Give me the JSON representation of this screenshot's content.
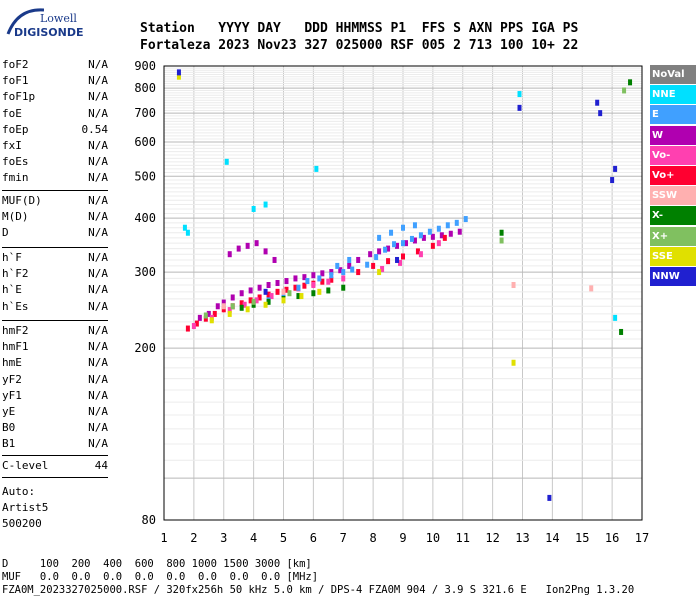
{
  "logo": {
    "line1": "Lowell",
    "line2": "DIGISONDE"
  },
  "header": {
    "row1": "Station   YYYY DAY   DDD HHMMSS P1  FFS S AXN PPS IGA PS",
    "row2": "Fortaleza 2023 Nov23 327 025000 RSF 005 2 713 100 10+ 22"
  },
  "params": {
    "group1": [
      {
        "name": "foF2",
        "value": "N/A"
      },
      {
        "name": "foF1",
        "value": "N/A"
      },
      {
        "name": "foF1p",
        "value": "N/A"
      },
      {
        "name": "foE",
        "value": "N/A"
      },
      {
        "name": "foEp",
        "value": "0.54"
      },
      {
        "name": "fxI",
        "value": "N/A"
      },
      {
        "name": "foEs",
        "value": "N/A"
      },
      {
        "name": "fmin",
        "value": "N/A"
      }
    ],
    "group2": [
      {
        "name": "MUF(D)",
        "value": "N/A"
      },
      {
        "name": "M(D)",
        "value": "N/A"
      },
      {
        "name": "D",
        "value": "N/A"
      }
    ],
    "group3": [
      {
        "name": "h`F",
        "value": "N/A"
      },
      {
        "name": "h`F2",
        "value": "N/A"
      },
      {
        "name": "h`E",
        "value": "N/A"
      },
      {
        "name": "h`Es",
        "value": "N/A"
      }
    ],
    "group4": [
      {
        "name": "hmF2",
        "value": "N/A"
      },
      {
        "name": "hmF1",
        "value": "N/A"
      },
      {
        "name": "hmE",
        "value": "N/A"
      },
      {
        "name": "yF2",
        "value": "N/A"
      },
      {
        "name": "yF1",
        "value": "N/A"
      },
      {
        "name": "yE",
        "value": "N/A"
      },
      {
        "name": "B0",
        "value": "N/A"
      },
      {
        "name": "B1",
        "value": "N/A"
      }
    ],
    "group5": [
      {
        "name": "C-level",
        "value": "44"
      }
    ]
  },
  "auto": {
    "line1": "Auto:",
    "line2": "Artist5",
    "line3": "500200"
  },
  "legend": [
    {
      "label": "NoVal",
      "color": "#808080"
    },
    {
      "label": "NNE",
      "color": "#00e0ff"
    },
    {
      "label": "E",
      "color": "#40a0ff"
    },
    {
      "label": "W",
      "color": "#b000b0"
    },
    {
      "label": "Vo-",
      "color": "#ff40b0"
    },
    {
      "label": "Vo+",
      "color": "#ff0030"
    },
    {
      "label": "SSW",
      "color": "#ffb0b0"
    },
    {
      "label": "X-",
      "color": "#008000"
    },
    {
      "label": "X+",
      "color": "#80c060"
    },
    {
      "label": "SSE",
      "color": "#e0e000"
    },
    {
      "label": "NNW",
      "color": "#2020d0"
    }
  ],
  "footer": {
    "line1": "D     100  200  400  600  800 1000 1500 3000 [km]",
    "line2": "MUF   0.0  0.0  0.0  0.0  0.0  0.0  0.0  0.0 [MHz]",
    "line3": "FZA0M_2023327025000.RSF / 320fx256h 50 kHz 5.0 km / DPS-4 FZA0M 904 / 3.9 S 321.6 E   Ion2Png 1.3.20"
  },
  "chart_data": {
    "type": "scatter",
    "xlim": [
      1,
      17
    ],
    "ylim": [
      80,
      900
    ],
    "y_scale": "log",
    "xticks": [
      1,
      2,
      3,
      4,
      5,
      6,
      7,
      8,
      9,
      10,
      11,
      12,
      13,
      14,
      15,
      16,
      17
    ],
    "yticks": [
      80,
      200,
      300,
      400,
      500,
      600,
      700,
      800,
      900
    ],
    "grid": true,
    "legend_position": "right",
    "series": [
      {
        "name": "W",
        "color": "#b000b0",
        "x": [
          2.2,
          2.5,
          2.8,
          3.0,
          3.3,
          3.6,
          3.9,
          4.2,
          4.5,
          4.8,
          5.1,
          5.4,
          5.7,
          6.0,
          6.3,
          6.6,
          6.9,
          7.2,
          7.5,
          7.9,
          8.2,
          8.5,
          8.8,
          9.1,
          9.4,
          9.7,
          10.0,
          10.3,
          10.6,
          10.9,
          3.2,
          3.5,
          3.8,
          4.1,
          4.4,
          4.7
        ],
        "y": [
          235,
          240,
          250,
          255,
          262,
          268,
          272,
          276,
          280,
          283,
          286,
          290,
          292,
          295,
          298,
          300,
          303,
          310,
          320,
          330,
          335,
          340,
          345,
          350,
          355,
          360,
          362,
          365,
          368,
          372,
          330,
          340,
          345,
          350,
          335,
          320
        ]
      },
      {
        "name": "Vo+",
        "color": "#ff0030",
        "x": [
          1.8,
          2.1,
          2.4,
          2.7,
          3.0,
          3.3,
          3.6,
          3.9,
          4.2,
          4.5,
          4.8,
          5.1,
          5.4,
          5.7,
          6.0,
          6.3,
          6.6,
          7.5,
          8.0,
          8.5,
          9.0,
          9.5,
          10.0,
          10.4
        ],
        "y": [
          222,
          228,
          234,
          240,
          246,
          250,
          254,
          258,
          262,
          266,
          270,
          273,
          276,
          279,
          282,
          285,
          288,
          300,
          310,
          318,
          326,
          335,
          345,
          360
        ]
      },
      {
        "name": "Vo-",
        "color": "#ff40b0",
        "x": [
          2.0,
          2.6,
          3.2,
          3.7,
          4.1,
          4.6,
          5.0,
          5.5,
          6.0,
          6.5,
          7.0,
          8.3,
          8.9,
          9.6,
          10.2
        ],
        "y": [
          225,
          235,
          245,
          252,
          258,
          264,
          270,
          275,
          280,
          285,
          290,
          305,
          315,
          330,
          350
        ]
      },
      {
        "name": "E",
        "color": "#40a0ff",
        "x": [
          4.5,
          5.0,
          5.5,
          5.8,
          6.2,
          6.6,
          7.0,
          7.3,
          7.8,
          8.1,
          8.4,
          8.7,
          9.0,
          9.3,
          9.6,
          9.9,
          10.2,
          10.5,
          10.8,
          11.1,
          8.2,
          8.6,
          9.0,
          9.4,
          6.8,
          7.2
        ],
        "y": [
          258,
          266,
          276,
          286,
          290,
          295,
          300,
          304,
          312,
          325,
          338,
          348,
          350,
          358,
          365,
          372,
          378,
          385,
          390,
          398,
          360,
          370,
          380,
          385,
          310,
          320
        ]
      },
      {
        "name": "NNE",
        "color": "#00e0ff",
        "x": [
          1.7,
          1.8,
          3.1,
          4.0,
          4.4,
          6.1,
          12.9,
          16.1
        ],
        "y": [
          380,
          370,
          540,
          420,
          430,
          520,
          775,
          235
        ]
      },
      {
        "name": "X-",
        "color": "#008000",
        "x": [
          3.6,
          4.0,
          4.5,
          5.0,
          5.5,
          6.0,
          6.5,
          7.0,
          12.3,
          16.3,
          16.6
        ],
        "y": [
          248,
          252,
          256,
          260,
          264,
          268,
          272,
          276,
          370,
          218,
          825
        ]
      },
      {
        "name": "X+",
        "color": "#80c060",
        "x": [
          2.4,
          3.3,
          4.0,
          5.2,
          12.3,
          16.4
        ],
        "y": [
          238,
          250,
          256,
          268,
          355,
          790
        ]
      },
      {
        "name": "SSE",
        "color": "#e0e000",
        "x": [
          2.6,
          3.2,
          3.8,
          4.4,
          5.0,
          5.6,
          6.2,
          8.2,
          12.7,
          1.5
        ],
        "y": [
          232,
          240,
          246,
          252,
          258,
          264,
          270,
          300,
          185,
          850
        ]
      },
      {
        "name": "NNW",
        "color": "#2020d0",
        "x": [
          1.5,
          4.4,
          8.8,
          12.9,
          13.9,
          15.5,
          15.6,
          16.0,
          16.1
        ],
        "y": [
          870,
          270,
          320,
          720,
          90,
          740,
          700,
          490,
          520
        ]
      },
      {
        "name": "SSW",
        "color": "#ffb0b0",
        "x": [
          3.0,
          5.0,
          12.7,
          15.3
        ],
        "y": [
          250,
          270,
          280,
          275
        ]
      }
    ]
  }
}
